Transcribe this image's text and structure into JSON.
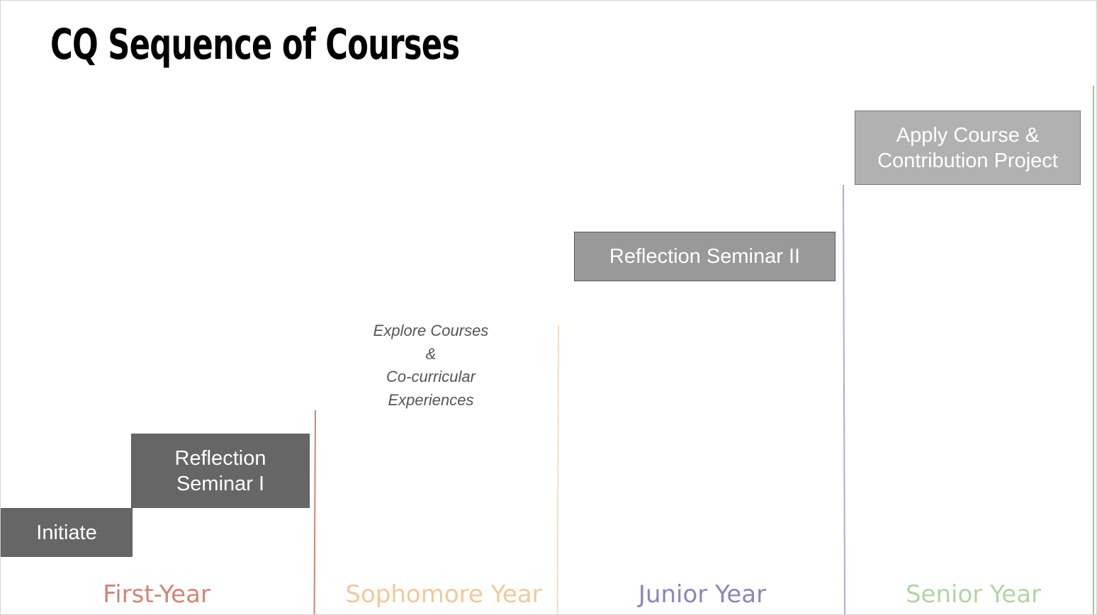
{
  "slide": {
    "title": "CQ Sequence of Courses"
  },
  "steps": {
    "initiate": {
      "label": "Initiate"
    },
    "reflection_seminar_1": {
      "label": "Reflection\nSeminar I"
    },
    "explore": {
      "label": "Explore Courses\n&\nCo-curricular\nExperiences"
    },
    "reflection_seminar_2": {
      "label": "Reflection Seminar II"
    },
    "apply": {
      "label": "Apply Course &\nContribution Project"
    }
  },
  "years": [
    {
      "label": "First-Year",
      "color": "#d38477"
    },
    {
      "label": "Sophomore Year",
      "color": "#f2c99b"
    },
    {
      "label": "Junior Year",
      "color": "#8f83bf"
    },
    {
      "label": "Senior Year",
      "color": "#b4d4a3"
    }
  ],
  "colors": {
    "dark_box": "#666666",
    "mid_box": "#999999",
    "light_box": "#b1b1b1",
    "first_year_line": "#d38477",
    "sophomore_line": "#f5dcc4",
    "junior_line": "#b0a9d4",
    "senior_line": "#9ccb86"
  }
}
